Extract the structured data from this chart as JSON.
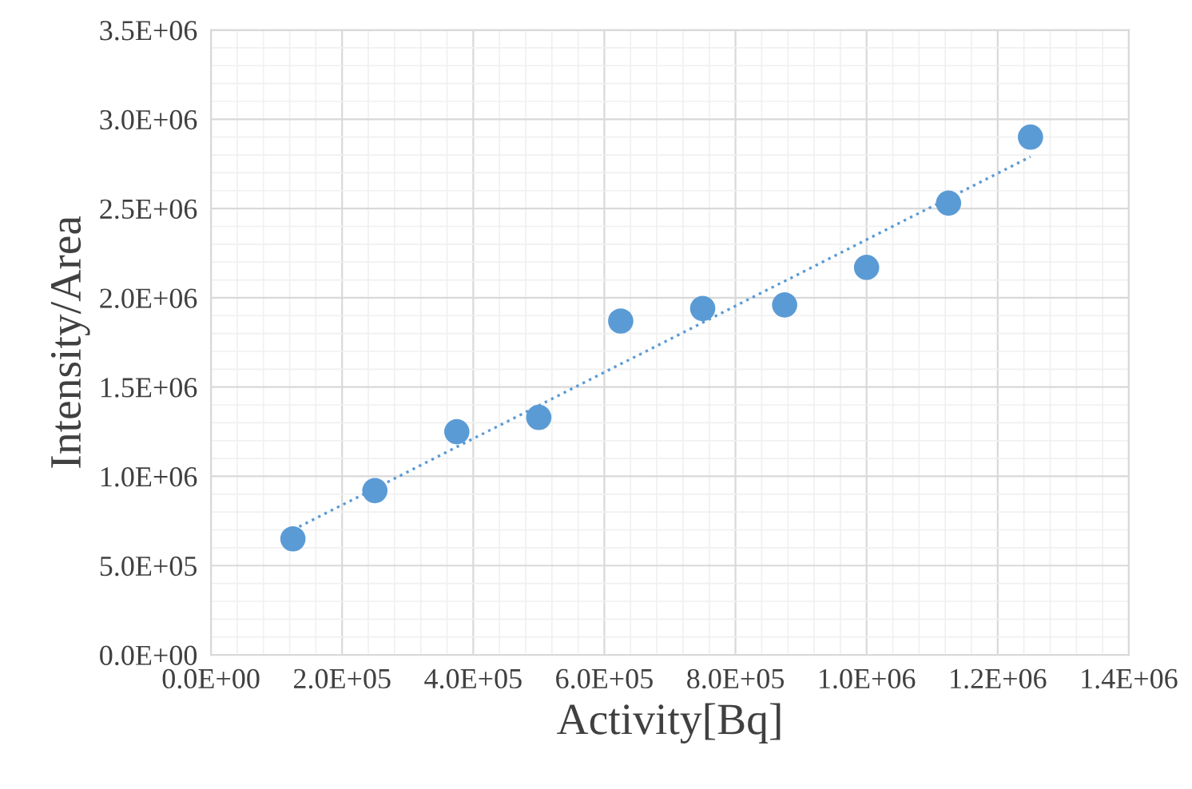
{
  "chart_data": {
    "type": "scatter",
    "xlabel": "Activity[Bq]",
    "ylabel": "Intensity/Area",
    "x": [
      125000,
      250000,
      375000,
      500000,
      625000,
      750000,
      875000,
      1000000,
      1125000,
      1250000
    ],
    "series": [
      {
        "color": "#5b9bd5",
        "values": [
          650000,
          920000,
          1250000,
          1330000,
          1870000,
          1940000,
          1960000,
          2170000,
          2530000,
          2900000
        ]
      },
      {
        "type": "line",
        "color": "#5b9bd5",
        "x": [
          125000,
          1250000
        ],
        "values": [
          700000,
          2790000
        ],
        "line_style": "dotted",
        "marker": "none"
      }
    ],
    "marker": "circle",
    "grid": true,
    "xlim": [
      0,
      1400000
    ],
    "xticks": [
      {
        "value": 0,
        "label": "0.0E+00"
      },
      {
        "value": 200000,
        "label": "2.0E+05"
      },
      {
        "value": 400000,
        "label": "4.0E+05"
      },
      {
        "value": 600000,
        "label": "6.0E+05"
      },
      {
        "value": 800000,
        "label": "8.0E+05"
      },
      {
        "value": 1000000,
        "label": "1.0E+06"
      },
      {
        "value": 1200000,
        "label": "1.2E+06"
      },
      {
        "value": 1400000,
        "label": "1.4E+06"
      }
    ],
    "ylim": [
      0,
      3500000
    ],
    "yticks": [
      {
        "value": 0,
        "label": "0.0E+00"
      },
      {
        "value": 500000,
        "label": "5.0E+05"
      },
      {
        "value": 1000000,
        "label": "1.0E+06"
      },
      {
        "value": 1500000,
        "label": "1.5E+06"
      },
      {
        "value": 2000000,
        "label": "2.0E+06"
      },
      {
        "value": 2500000,
        "label": "2.5E+06"
      },
      {
        "value": 3000000,
        "label": "3.0E+06"
      },
      {
        "value": 3500000,
        "label": "3.5E+06"
      }
    ]
  }
}
